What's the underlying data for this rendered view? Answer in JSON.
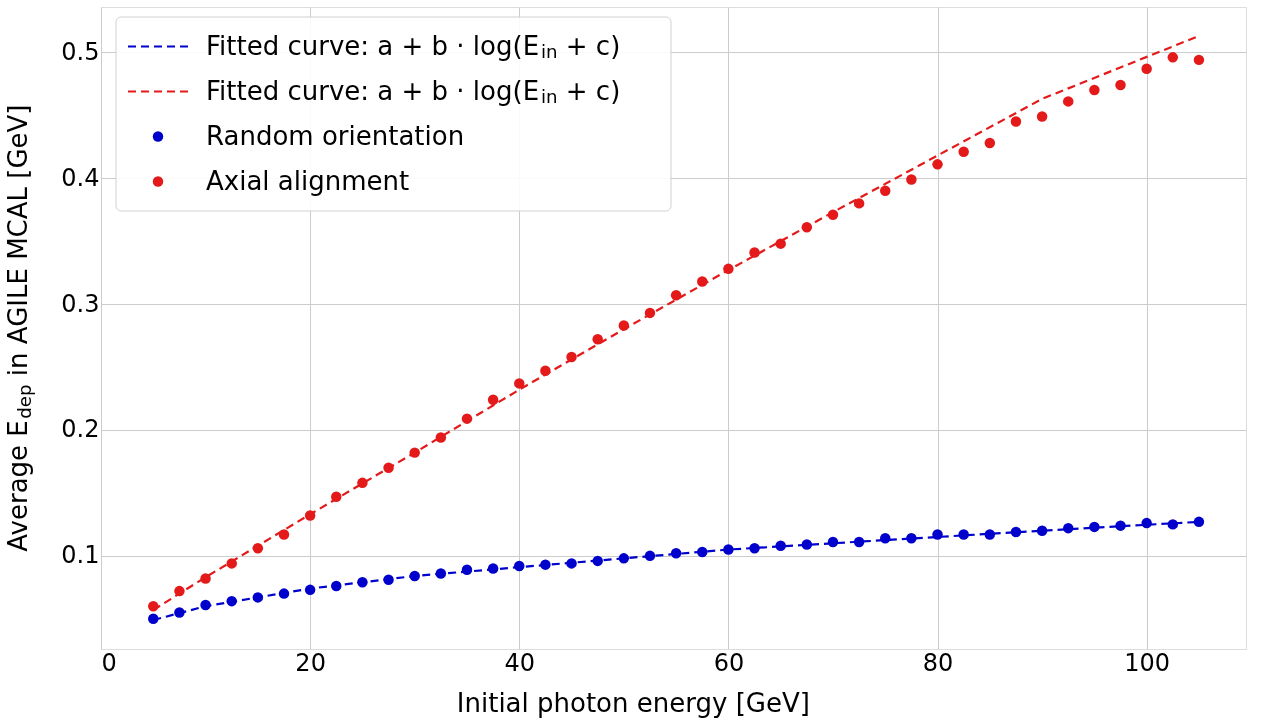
{
  "chart_data": {
    "type": "scatter",
    "xlabel": "Initial photon energy [GeV]",
    "ylabel": "Average E$_{dep}$ in AGILE MCAL [GeV]",
    "xlim": [
      0,
      109.5
    ],
    "ylim": [
      0.026,
      0.536
    ],
    "xticks": [
      0,
      20,
      40,
      60,
      80,
      100
    ],
    "yticks": [
      0.1,
      0.2,
      0.3,
      0.4,
      0.5
    ],
    "grid": true,
    "legend": "top left",
    "marker": "circle",
    "series": [
      {
        "name": "Fitted curve: a + b · log(E$_{in}$ + c)",
        "type": "line",
        "line_style": "dashed",
        "marker": "none",
        "color": "#0000cc",
        "x": [
          5,
          10,
          20,
          30,
          40,
          50,
          60,
          70,
          80,
          90,
          105
        ],
        "values": [
          0.049,
          0.06,
          0.074,
          0.084,
          0.091,
          0.098,
          0.105,
          0.11,
          0.115,
          0.12,
          0.127
        ]
      },
      {
        "name": "Fitted curve: a + b · log(E$_{in}$ + c)",
        "type": "line",
        "line_style": "dashed",
        "marker": "none",
        "color": "#e41a1a",
        "x": [
          5,
          10,
          20,
          30,
          40,
          50,
          60,
          70,
          80,
          90,
          105
        ],
        "values": [
          0.057,
          0.083,
          0.133,
          0.182,
          0.232,
          0.28,
          0.327,
          0.373,
          0.418,
          0.463,
          0.513
        ]
      },
      {
        "name": "Random orientation",
        "type": "scatter",
        "color": "#0000cc",
        "x": [
          5,
          7.5,
          10,
          12.5,
          15,
          17.5,
          20,
          22.5,
          25,
          27.5,
          30,
          32.5,
          35,
          37.5,
          40,
          42.5,
          45,
          47.5,
          50,
          52.5,
          55,
          57.5,
          60,
          62.5,
          65,
          67.5,
          70,
          72.5,
          75,
          77.5,
          80,
          82.5,
          85,
          87.5,
          90,
          92.5,
          95,
          97.5,
          100,
          102.5,
          105
        ],
        "values": [
          0.05,
          0.055,
          0.061,
          0.064,
          0.067,
          0.07,
          0.073,
          0.076,
          0.079,
          0.081,
          0.084,
          0.086,
          0.089,
          0.09,
          0.092,
          0.093,
          0.094,
          0.096,
          0.098,
          0.1,
          0.102,
          0.103,
          0.105,
          0.106,
          0.108,
          0.109,
          0.111,
          0.111,
          0.114,
          0.114,
          0.117,
          0.117,
          0.117,
          0.119,
          0.12,
          0.122,
          0.123,
          0.124,
          0.126,
          0.125,
          0.127
        ]
      },
      {
        "name": "Axial alignment",
        "type": "scatter",
        "color": "#e41a1a",
        "x": [
          5,
          7.5,
          10,
          12.5,
          15,
          17.5,
          20,
          22.5,
          25,
          27.5,
          30,
          32.5,
          35,
          37.5,
          40,
          42.5,
          45,
          47.5,
          50,
          52.5,
          55,
          57.5,
          60,
          62.5,
          65,
          67.5,
          70,
          72.5,
          75,
          77.5,
          80,
          82.5,
          85,
          87.5,
          90,
          92.5,
          95,
          97.5,
          100,
          102.5,
          105
        ],
        "values": [
          0.06,
          0.072,
          0.082,
          0.094,
          0.106,
          0.117,
          0.132,
          0.147,
          0.158,
          0.17,
          0.182,
          0.194,
          0.209,
          0.224,
          0.237,
          0.247,
          0.258,
          0.272,
          0.283,
          0.293,
          0.307,
          0.318,
          0.328,
          0.341,
          0.348,
          0.361,
          0.371,
          0.38,
          0.39,
          0.399,
          0.411,
          0.421,
          0.428,
          0.445,
          0.449,
          0.461,
          0.47,
          0.474,
          0.487,
          0.496,
          0.494
        ]
      }
    ]
  }
}
